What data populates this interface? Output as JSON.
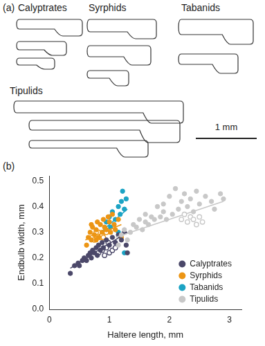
{
  "panel_a": {
    "label": "(a)",
    "groups": [
      "Calyptrates",
      "Syrphids",
      "Tabanids",
      "Tipulids"
    ],
    "scale_bar": "1 mm"
  },
  "chart_data": {
    "panel_label": "(b)",
    "type": "scatter",
    "x_label": "Haltere length, mm",
    "y_label": "Endbulb width, mm",
    "xlim": [
      0,
      3.2
    ],
    "xticks": [
      0,
      1,
      2,
      3
    ],
    "ylim": [
      0,
      0.52
    ],
    "yticks": [
      {
        "value": 0,
        "label": "0.0"
      },
      0.1,
      0.2,
      0.3,
      0.4,
      0.5
    ],
    "grid": false,
    "legend": "lower right",
    "series": [
      {
        "name": "Tipulids",
        "color": "#c8c8c8",
        "marker": "circle",
        "points": [
          [
            1.15,
            0.25
          ],
          [
            1.2,
            0.29
          ],
          [
            1.25,
            0.31
          ],
          [
            1.3,
            0.27
          ],
          [
            1.35,
            0.3
          ],
          [
            1.4,
            0.33
          ],
          [
            1.45,
            0.32
          ],
          [
            1.5,
            0.35
          ],
          [
            1.55,
            0.31
          ],
          [
            1.6,
            0.34
          ],
          [
            1.65,
            0.33
          ],
          [
            1.7,
            0.36
          ],
          [
            1.75,
            0.35
          ],
          [
            1.8,
            0.4
          ],
          [
            1.85,
            0.36
          ],
          [
            1.9,
            0.38
          ],
          [
            1.95,
            0.35
          ],
          [
            2.0,
            0.44
          ],
          [
            2.05,
            0.37
          ],
          [
            2.1,
            0.47
          ],
          [
            2.15,
            0.39
          ],
          [
            2.2,
            0.42
          ],
          [
            2.25,
            0.45
          ],
          [
            2.3,
            0.4
          ],
          [
            2.35,
            0.43
          ],
          [
            2.4,
            0.38
          ],
          [
            2.45,
            0.46
          ],
          [
            2.5,
            0.41
          ],
          [
            2.6,
            0.44
          ],
          [
            2.7,
            0.42
          ],
          [
            2.75,
            0.39
          ],
          [
            2.85,
            0.45
          ],
          [
            2.9,
            0.43
          ],
          [
            1.9,
            0.41
          ],
          [
            1.6,
            0.37
          ]
        ],
        "open_points": [
          [
            2.2,
            0.35
          ],
          [
            2.25,
            0.37
          ],
          [
            2.3,
            0.34
          ],
          [
            2.35,
            0.36
          ],
          [
            2.4,
            0.35
          ],
          [
            2.45,
            0.33
          ],
          [
            2.5,
            0.36
          ],
          [
            2.55,
            0.34
          ]
        ],
        "fit": [
          [
            1.1,
            0.28
          ],
          [
            2.9,
            0.42
          ]
        ]
      },
      {
        "name": "Calyptrates",
        "color": "#4b4869",
        "marker": "circle",
        "points": [
          [
            0.35,
            0.14
          ],
          [
            0.42,
            0.17
          ],
          [
            0.48,
            0.18
          ],
          [
            0.5,
            0.17
          ],
          [
            0.55,
            0.19
          ],
          [
            0.58,
            0.2
          ],
          [
            0.62,
            0.19
          ],
          [
            0.65,
            0.21
          ],
          [
            0.68,
            0.22
          ],
          [
            0.7,
            0.2
          ],
          [
            0.72,
            0.23
          ],
          [
            0.75,
            0.22
          ],
          [
            0.78,
            0.24
          ],
          [
            0.8,
            0.21
          ],
          [
            0.82,
            0.25
          ],
          [
            0.85,
            0.23
          ],
          [
            0.88,
            0.26
          ],
          [
            0.9,
            0.24
          ],
          [
            0.95,
            0.27
          ],
          [
            1.0,
            0.25
          ],
          [
            1.05,
            0.28
          ],
          [
            1.1,
            0.26
          ],
          [
            1.15,
            0.29
          ],
          [
            1.2,
            0.27
          ],
          [
            1.25,
            0.3
          ],
          [
            1.28,
            0.25
          ],
          [
            1.3,
            0.22
          ]
        ],
        "open_points": [
          [
            0.82,
            0.22
          ],
          [
            0.88,
            0.23
          ],
          [
            0.92,
            0.21
          ],
          [
            0.95,
            0.24
          ],
          [
            1.0,
            0.22
          ],
          [
            1.05,
            0.23
          ],
          [
            1.1,
            0.24
          ],
          [
            0.98,
            0.26
          ]
        ],
        "fit": [
          [
            0.35,
            0.16
          ],
          [
            1.3,
            0.3
          ]
        ]
      },
      {
        "name": "Syrphids",
        "color": "#ec9514",
        "marker": "circle",
        "points": [
          [
            0.62,
            0.25
          ],
          [
            0.65,
            0.28
          ],
          [
            0.68,
            0.3
          ],
          [
            0.7,
            0.27
          ],
          [
            0.72,
            0.32
          ],
          [
            0.75,
            0.29
          ],
          [
            0.78,
            0.31
          ],
          [
            0.8,
            0.34
          ],
          [
            0.82,
            0.28
          ],
          [
            0.85,
            0.33
          ],
          [
            0.88,
            0.3
          ],
          [
            0.9,
            0.35
          ],
          [
            0.92,
            0.32
          ],
          [
            0.95,
            0.31
          ],
          [
            0.98,
            0.36
          ],
          [
            1.0,
            0.34
          ],
          [
            1.02,
            0.3
          ],
          [
            1.05,
            0.37
          ],
          [
            1.08,
            0.33
          ],
          [
            1.1,
            0.31
          ],
          [
            1.15,
            0.35
          ],
          [
            0.7,
            0.33
          ],
          [
            0.78,
            0.27
          ],
          [
            1.2,
            0.28
          ]
        ],
        "open_points": [
          [
            0.72,
            0.28
          ],
          [
            0.75,
            0.27
          ],
          [
            0.8,
            0.29
          ],
          [
            0.82,
            0.3
          ],
          [
            0.85,
            0.28
          ],
          [
            0.88,
            0.29
          ],
          [
            0.9,
            0.28
          ],
          [
            0.95,
            0.3
          ],
          [
            0.78,
            0.3
          ]
        ],
        "fit": [
          [
            0.6,
            0.27
          ],
          [
            1.2,
            0.33
          ]
        ]
      },
      {
        "name": "Tabanids",
        "color": "#1ba3c4",
        "marker": "circle",
        "points": [
          [
            0.9,
            0.3
          ],
          [
            0.95,
            0.34
          ],
          [
            1.0,
            0.36
          ],
          [
            1.02,
            0.32
          ],
          [
            1.05,
            0.38
          ],
          [
            1.1,
            0.35
          ],
          [
            1.15,
            0.4
          ],
          [
            1.18,
            0.37
          ],
          [
            1.2,
            0.42
          ],
          [
            1.22,
            0.46
          ],
          [
            1.25,
            0.39
          ],
          [
            1.28,
            0.43
          ],
          [
            1.25,
            0.22
          ],
          [
            1.15,
            0.3
          ]
        ],
        "open_points": [],
        "fit": [
          [
            0.9,
            0.31
          ],
          [
            1.3,
            0.39
          ]
        ]
      }
    ]
  }
}
